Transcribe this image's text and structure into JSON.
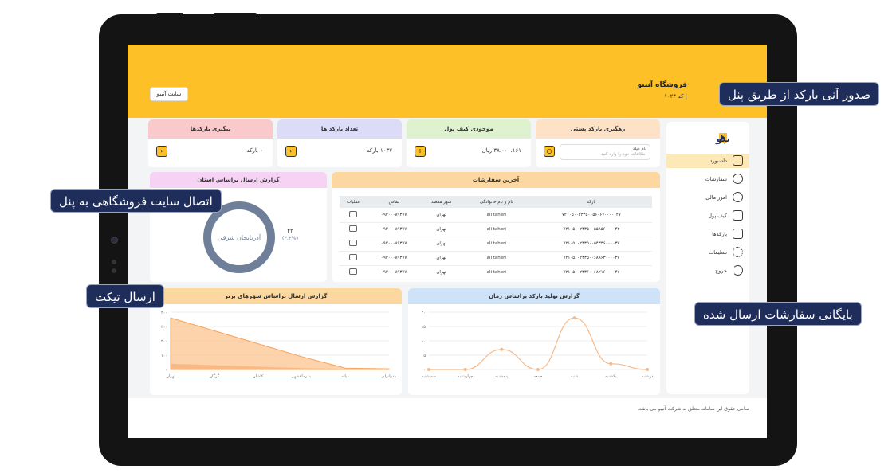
{
  "shop": {
    "name": "فروشگاه آنیبو",
    "code": "|  کد ۱۰۲۴"
  },
  "header": {
    "site_button": "سایت آنیبو"
  },
  "sidebar": {
    "items": [
      {
        "label": "داشبورد",
        "icon": "dashboard-icon"
      },
      {
        "label": "سفارشات",
        "icon": "orders-icon"
      },
      {
        "label": "امور مالی",
        "icon": "finance-icon"
      },
      {
        "label": "کیف پول",
        "icon": "wallet-icon"
      },
      {
        "label": "بارکدها",
        "icon": "barcode-icon"
      },
      {
        "label": "تنظیمات",
        "icon": "gear-icon"
      },
      {
        "label": "خروج",
        "icon": "logout-icon"
      }
    ]
  },
  "cards": {
    "tracking": {
      "title": "رهگیری بارکد پستی",
      "field_label": "نام فیلد",
      "field_placeholder": "اطلاعات خود را وارد کنید",
      "color": "#fde2c8"
    },
    "wallet": {
      "title": "موجودی کیف پول",
      "value": "۳۸،۰۰۰،۱۶۱ ریال",
      "color": "#dff2cf"
    },
    "barcode_count": {
      "title": "تعداد بارکد ها",
      "value": "۱۰۳۷ بارکد",
      "color": "#dcdcf8"
    },
    "barcode_follow": {
      "title": "پیگیری بارکدها",
      "value": "۰ بارکد",
      "color": "#f9c9cc"
    }
  },
  "orders": {
    "title": "آخرین سفارشات",
    "columns": [
      "بارکد",
      "نام و نام خانوادگی",
      "شهر مقصد",
      "تماس",
      "عملیات"
    ],
    "rows": [
      {
        "barcode": "۷۲۱۰۵۰۰۲۳۳۵۰۰۵۶۰۶۷۰۰۰۰۰۴۷",
        "name": "ali taheri",
        "city": "تهران",
        "phone": "۰۹۳۰۰۰۸۹۳۷۷"
      },
      {
        "barcode": "۷۲۱۰۵۰۰۲۳۳۵۰۰۵۵۹۵۶۰۰۰۰۴۲",
        "name": "ali taheri",
        "city": "تهران",
        "phone": "۰۹۳۰۰۰۸۹۳۷۷"
      },
      {
        "barcode": "۷۲۱۰۵۰۰۲۳۳۵۰۰۵۴۳۴۶۰۰۰۰۳۷",
        "name": "ali taheri",
        "city": "تهران",
        "phone": "۰۹۳۰۰۰۸۹۳۷۷"
      },
      {
        "barcode": "۷۲۱۰۵۰۰۲۳۳۵۰۰۶۸۹۶۳۰۰۰۰۳۷",
        "name": "ali taheri",
        "city": "تهران",
        "phone": "۰۹۳۰۰۰۸۹۳۷۷"
      },
      {
        "barcode": "۷۲۱۰۵۰۰۲۳۳۶۰۰۶۸۲۱۶۰۰۰۰۴۷",
        "name": "ali taheri",
        "city": "تهران",
        "phone": "۰۹۳۰۰۰۸۹۳۷۷"
      }
    ]
  },
  "province_report": {
    "title": "گزارش ارسال براساس استان",
    "center_label": "آذربایجان شرقی",
    "value": "۴۲",
    "percent": "(۳.۳%)",
    "colors": {
      "ring": "#6f7f99"
    }
  },
  "city_report": {
    "title": "گزارش ارسال براساس شهرهای برتر",
    "y_ticks": [
      "۴۰۰",
      "۳۰۰",
      "۲۰۰",
      "۱۰۰",
      "۰"
    ],
    "categories": [
      "تهران",
      "گرگان",
      "کاشان",
      "بندرماهشهر",
      "میانه",
      "بندرانزلی"
    ],
    "values": [
      360,
      270,
      180,
      90,
      10,
      5
    ],
    "values2": [
      40,
      30,
      20,
      10,
      5,
      3
    ],
    "ylim": [
      0,
      400
    ]
  },
  "time_report": {
    "title": "گزارش تولید بارکد براساس زمان",
    "y_ticks": [
      "۲۰",
      "۱۵",
      "۱۰",
      "۵",
      "۰"
    ],
    "categories": [
      "دوشنبه",
      "یکشنبه",
      "شنبه",
      "جمعه",
      "پنجشنبه",
      "چهارشنبه",
      "سه شنبه"
    ],
    "values": [
      0,
      2,
      18,
      0,
      7,
      0,
      0
    ],
    "ylim": [
      0,
      20
    ]
  },
  "footer": "تمامی حقوق این سامانه متعلق به شرکت آنیبو می باشد.",
  "callouts": {
    "barcode_issue": "صدور آنی بارکد از طریق پنل",
    "store_connect": "اتصال سایت فروشگاهی به پنل",
    "ticket": "ارسال تیکت",
    "archive": "بایگانی سفارشات ارسال شده"
  }
}
